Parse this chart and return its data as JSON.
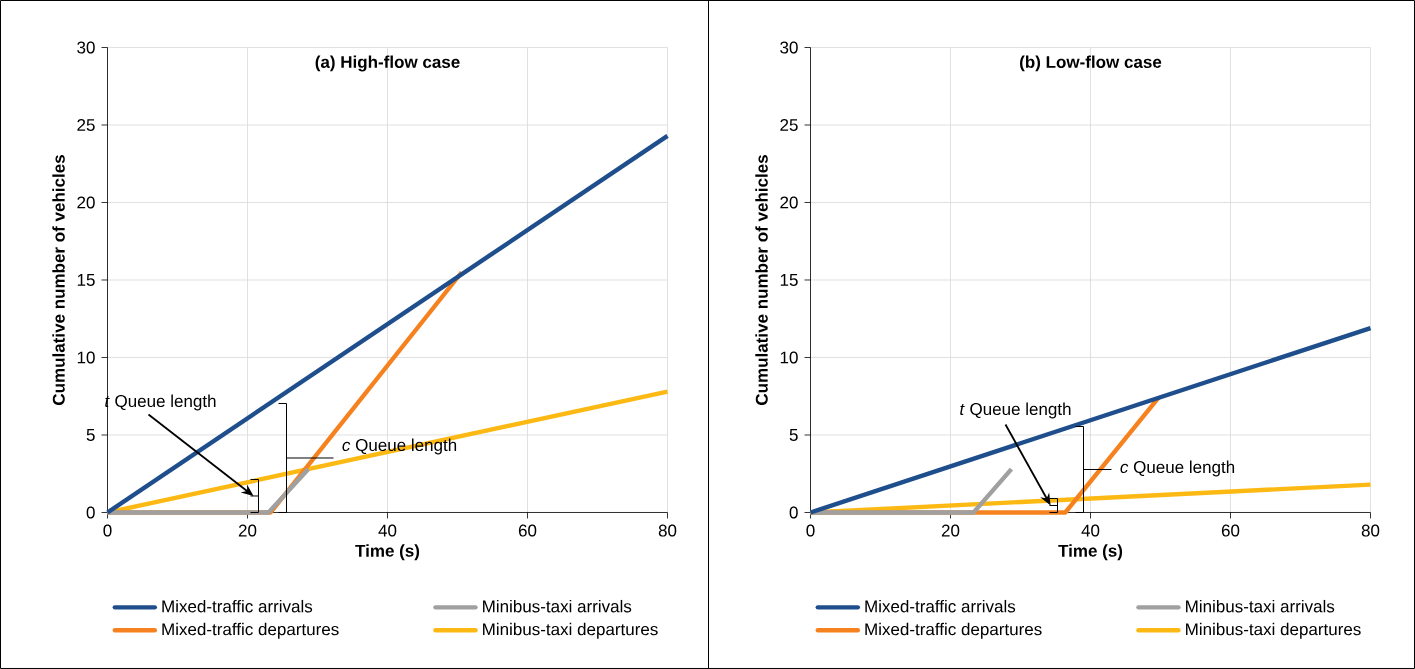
{
  "chart_data": [
    {
      "type": "line",
      "title": "(a) High-flow case",
      "xlabel": "Time (s)",
      "ylabel": "Cumulative number of vehicles",
      "xlim": [
        0,
        80
      ],
      "ylim": [
        0,
        30
      ],
      "xticks": [
        0,
        20,
        40,
        60,
        80
      ],
      "yticks": [
        0,
        5,
        10,
        15,
        20,
        25,
        30
      ],
      "grid": true,
      "legend": "bottom",
      "marker": "none",
      "line_style": "solid",
      "series": [
        {
          "name": "Mixed-traffic arrivals",
          "color": "#1f4e8c",
          "x": [
            0,
            80
          ],
          "values": [
            0,
            24.3
          ]
        },
        {
          "name": "Minibus-taxi arrivals",
          "color": "#a0a0a0",
          "x": [
            0,
            23,
            28.7
          ],
          "values": [
            0,
            0,
            2.8
          ]
        },
        {
          "name": "Mixed-traffic departures",
          "color": "#f5821f",
          "x": [
            0,
            23.3,
            50.6
          ],
          "values": [
            0,
            0,
            15.5
          ]
        },
        {
          "name": "Minibus-taxi departures",
          "color": "#fdb913",
          "x": [
            0,
            80
          ],
          "values": [
            0,
            7.8
          ]
        }
      ],
      "annotations": [
        "*t* Queue length",
        "*c* Queue length"
      ]
    },
    {
      "type": "line",
      "title": "(b) Low-flow case",
      "xlabel": "Time (s)",
      "ylabel": "Cumulative number of vehicles",
      "xlim": [
        0,
        80
      ],
      "ylim": [
        0,
        30
      ],
      "xticks": [
        0,
        20,
        40,
        60,
        80
      ],
      "yticks": [
        0,
        5,
        10,
        15,
        20,
        25,
        30
      ],
      "grid": true,
      "legend": "bottom",
      "marker": "none",
      "line_style": "solid",
      "series": [
        {
          "name": "Mixed-traffic arrivals",
          "color": "#1f4e8c",
          "x": [
            0,
            80
          ],
          "values": [
            0,
            11.9
          ]
        },
        {
          "name": "Minibus-taxi arrivals",
          "color": "#a0a0a0",
          "x": [
            0,
            23.3,
            28.7
          ],
          "values": [
            0,
            0,
            2.8
          ]
        },
        {
          "name": "Mixed-traffic departures",
          "color": "#f5821f",
          "x": [
            0,
            36.4,
            49.7
          ],
          "values": [
            0,
            0,
            7.4
          ]
        },
        {
          "name": "Minibus-taxi departures",
          "color": "#fdb913",
          "x": [
            0,
            80
          ],
          "values": [
            0,
            1.8
          ]
        }
      ],
      "annotations": [
        {
          "text": "*t* Queue length",
          "x": 34.3,
          "y": 0.45
        },
        "*c* Queue length"
      ]
    }
  ]
}
